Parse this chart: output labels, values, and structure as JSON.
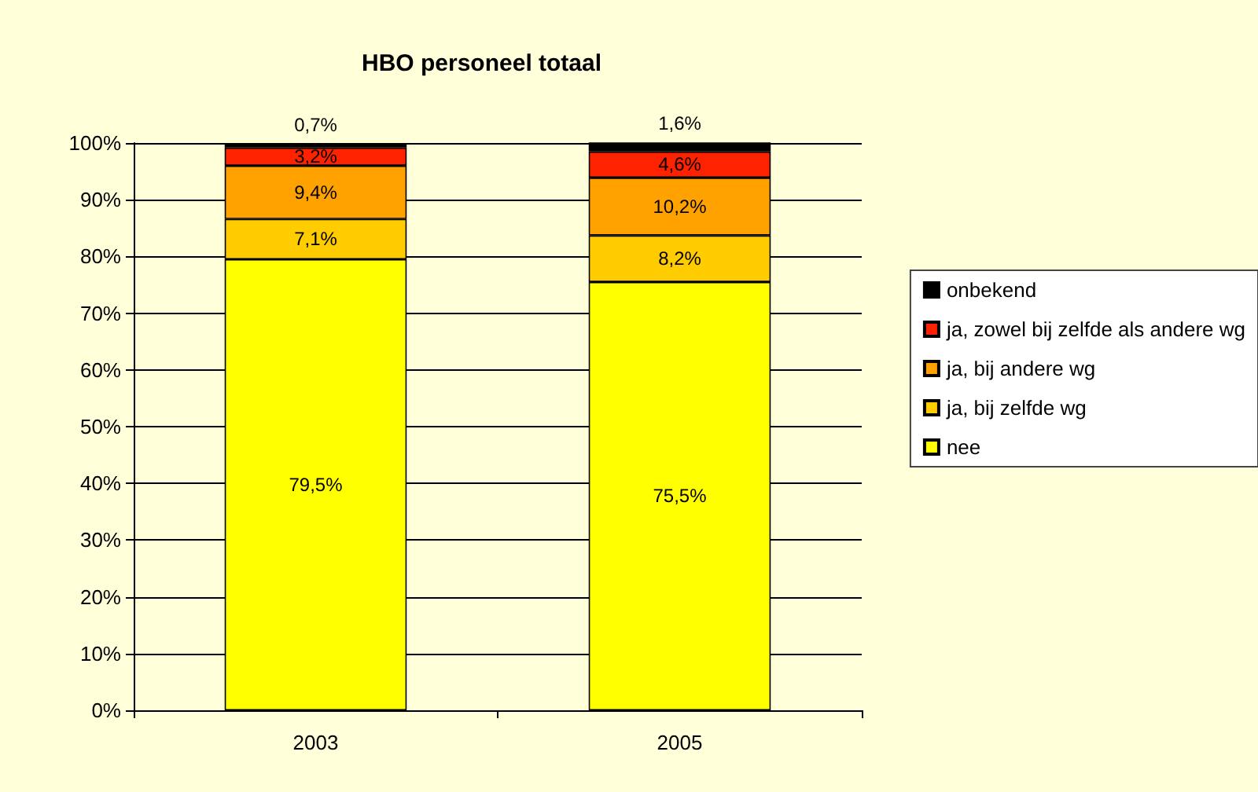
{
  "chart_data": {
    "type": "bar",
    "title": "HBO personeel totaal",
    "categories": [
      "2003",
      "2005"
    ],
    "stacked": true,
    "series": [
      {
        "name": "nee",
        "color": "#ffff00",
        "values": [
          79.5,
          75.5
        ],
        "value_labels": [
          "79,5%",
          "75,5%"
        ]
      },
      {
        "name": "ja, bij zelfde wg",
        "color": "#ffcc00",
        "values": [
          7.1,
          8.2
        ],
        "value_labels": [
          "7,1%",
          "8,2%"
        ]
      },
      {
        "name": "ja, bij andere wg",
        "color": "#ffa200",
        "values": [
          9.4,
          10.2
        ],
        "value_labels": [
          "9,4%",
          "10,2%"
        ]
      },
      {
        "name": "ja, zowel bij zelfde als andere wg",
        "color": "#ff2200",
        "values": [
          3.2,
          4.6
        ],
        "value_labels": [
          "3,2%",
          "4,6%"
        ]
      },
      {
        "name": "onbekend",
        "color": "#000000",
        "values": [
          0.7,
          1.6
        ],
        "value_labels": [
          "0,7%",
          "1,6%"
        ]
      }
    ],
    "ylim": [
      0,
      100
    ],
    "yticks": [
      {
        "value": 0,
        "label": "0%"
      },
      {
        "value": 10,
        "label": "10%"
      },
      {
        "value": 20,
        "label": "20%"
      },
      {
        "value": 30,
        "label": "30%"
      },
      {
        "value": 40,
        "label": "40%"
      },
      {
        "value": 50,
        "label": "50%"
      },
      {
        "value": 60,
        "label": "60%"
      },
      {
        "value": 70,
        "label": "70%"
      },
      {
        "value": 80,
        "label": "80%"
      },
      {
        "value": 90,
        "label": "90%"
      },
      {
        "value": 100,
        "label": "100%"
      }
    ],
    "grid": "y",
    "legend": "right"
  }
}
